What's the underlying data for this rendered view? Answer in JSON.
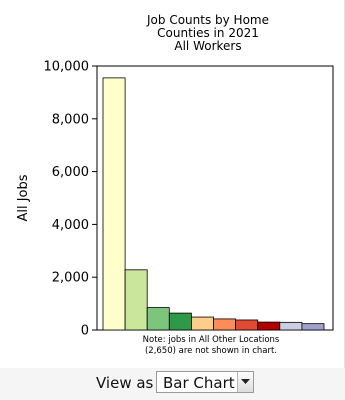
{
  "chart_data": {
    "type": "bar",
    "title": [
      "Job Counts by Home",
      "Counties in 2021",
      "All Workers"
    ],
    "ylabel": "All Jobs",
    "xlabel": "",
    "ylim": [
      0,
      10000
    ],
    "yticks": [
      0,
      2000,
      4000,
      6000,
      8000,
      10000
    ],
    "ytick_labels": [
      "0",
      "2,000",
      "4,000",
      "6,000",
      "8,000",
      "10,000"
    ],
    "values": [
      9550,
      2280,
      850,
      640,
      490,
      420,
      380,
      300,
      290,
      240
    ],
    "colors": [
      "#ffffcc",
      "#c9e69a",
      "#7cc67c",
      "#2e9a48",
      "#fdcd8a",
      "#fc8d59",
      "#e34a33",
      "#b30000",
      "#cccfe3",
      "#9ea1cc"
    ],
    "note": [
      "Note: jobs in All Other Locations",
      "(2,650) are not shown in chart."
    ],
    "grid": false
  },
  "footer": {
    "view_as_label": "View as",
    "selected_view": "Bar Chart"
  }
}
